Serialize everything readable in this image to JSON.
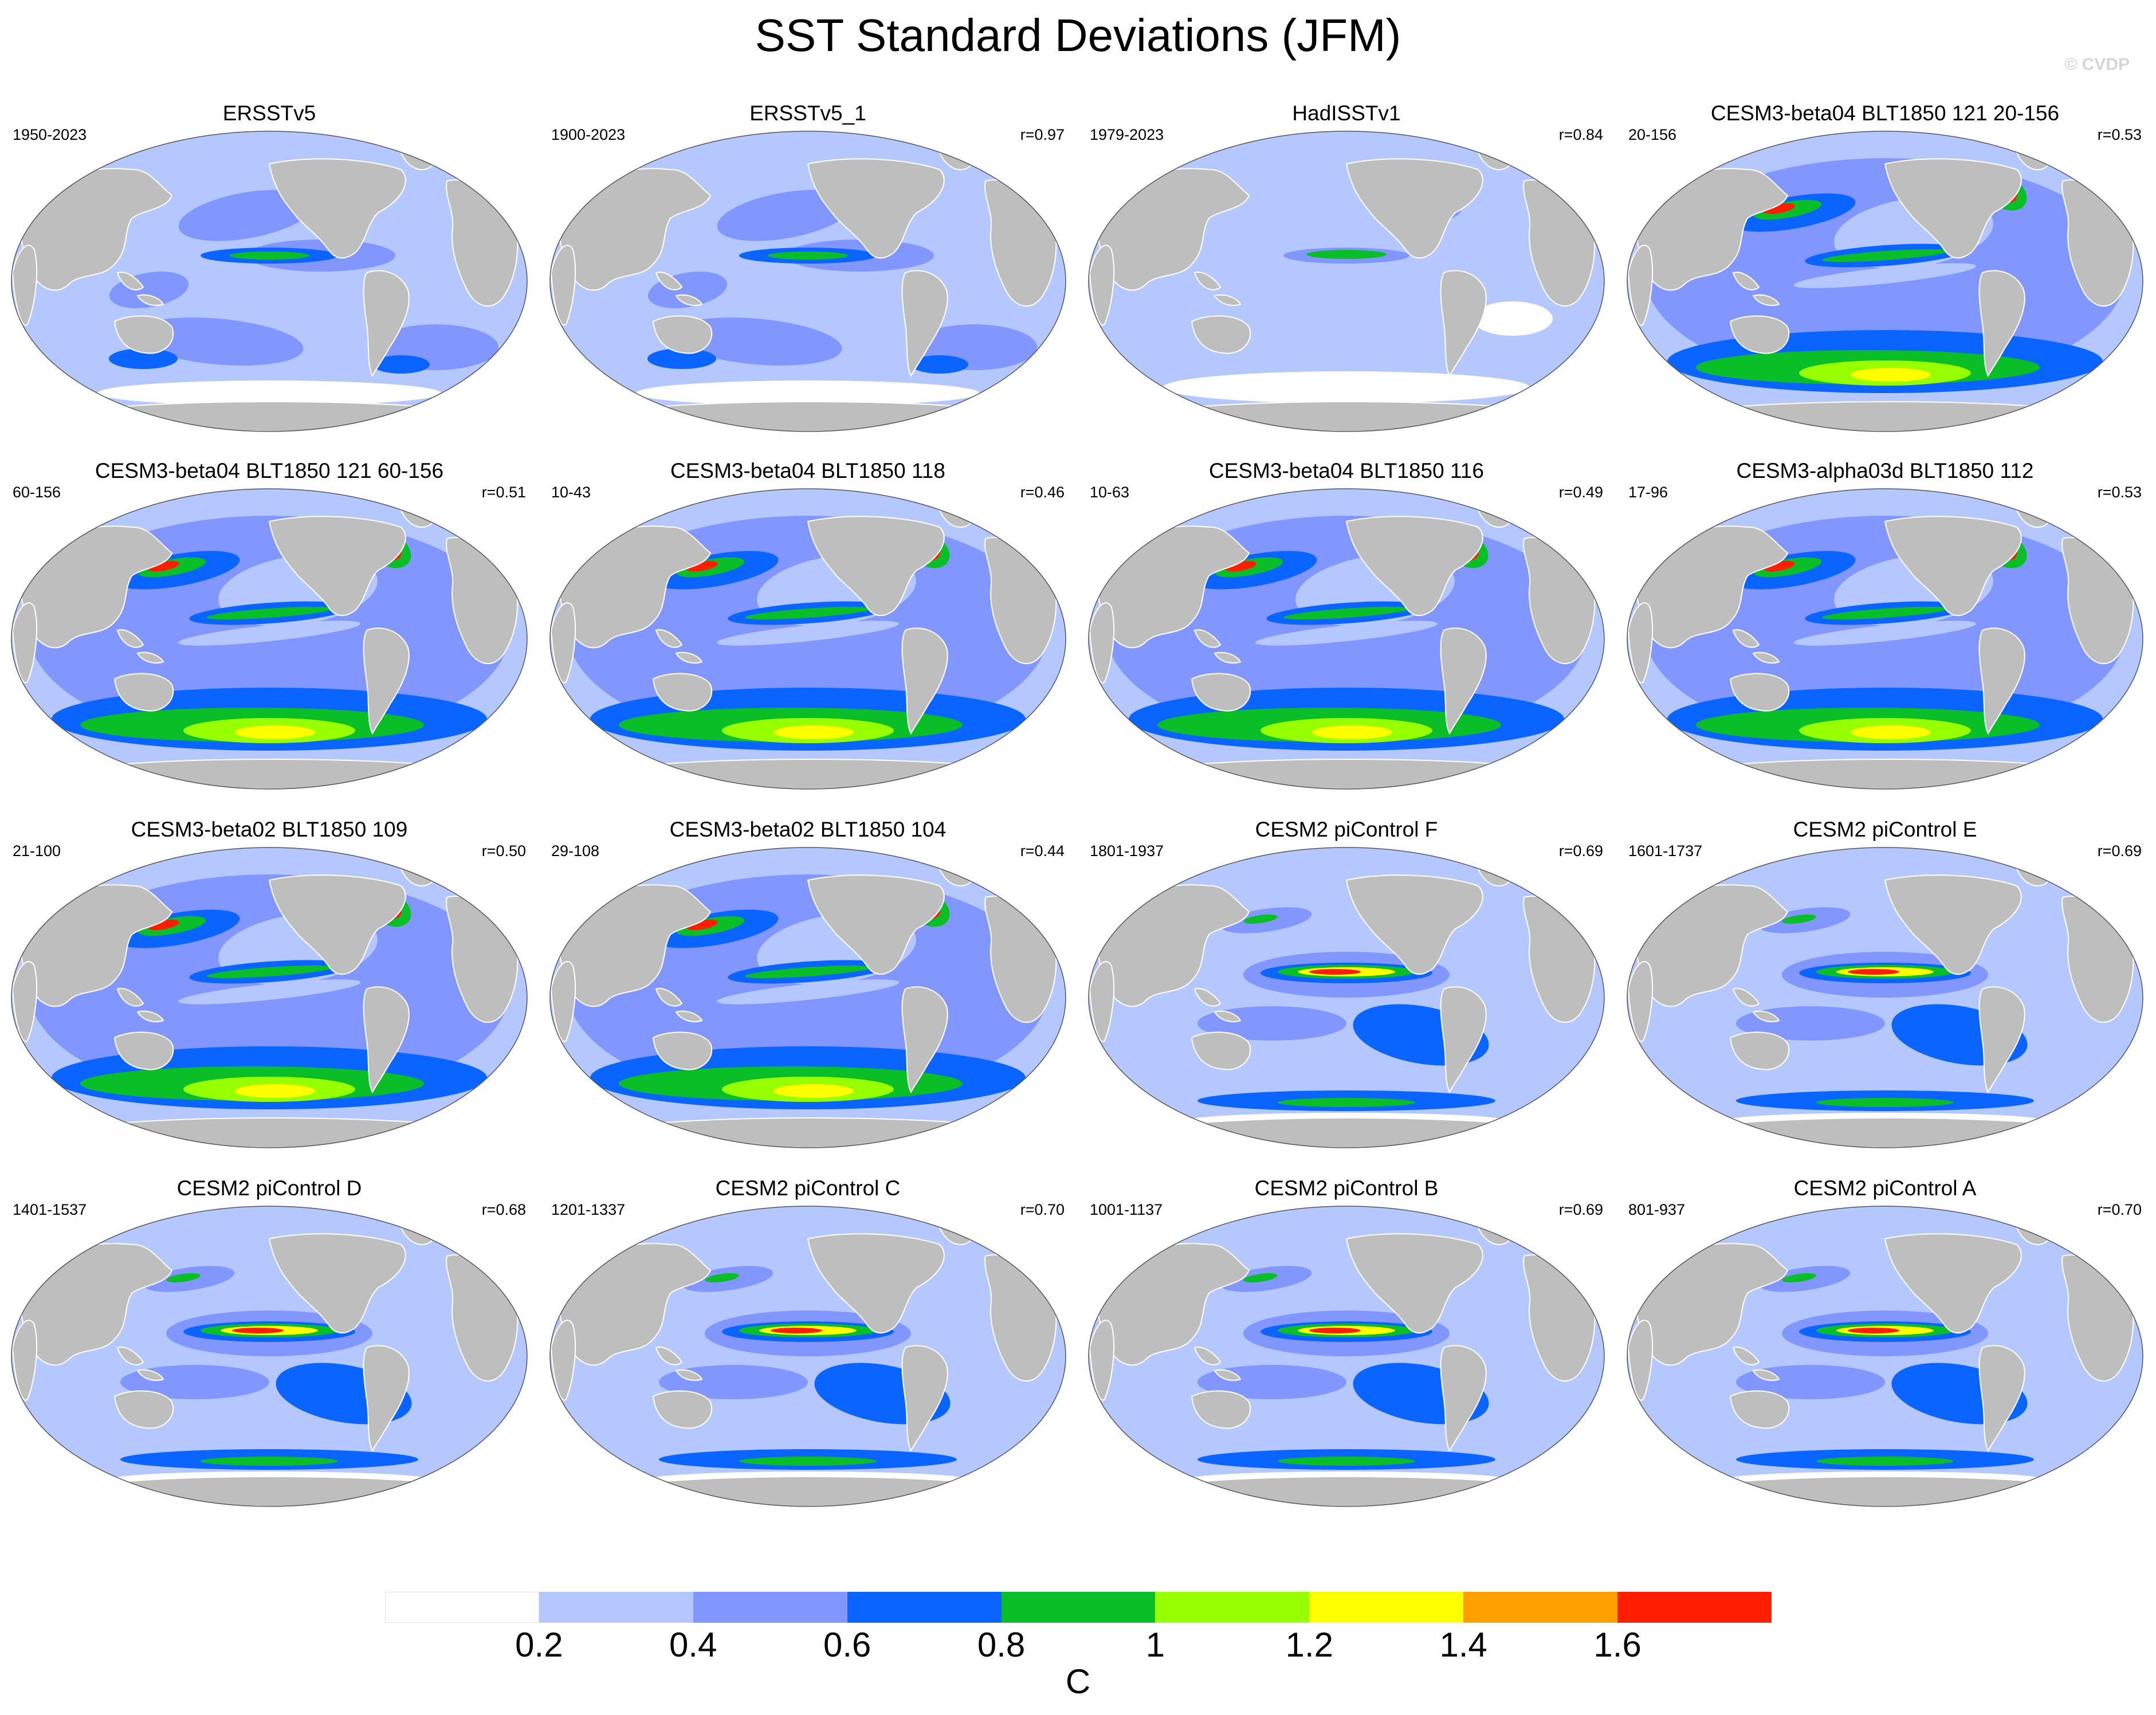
{
  "figure": {
    "title": "SST Standard Deviations (JFM)",
    "watermark": "© CVDP"
  },
  "panels": [
    {
      "title": "ERSSTv5",
      "years": "1950-2023",
      "r": "",
      "style": "obs"
    },
    {
      "title": "ERSSTv5_1",
      "years": "1900-2023",
      "r": "r=0.97",
      "style": "obs"
    },
    {
      "title": "HadISSTv1",
      "years": "1979-2023",
      "r": "r=0.84",
      "style": "had"
    },
    {
      "title": "CESM3-beta04 BLT1850 121 20-156",
      "years": "20-156",
      "r": "r=0.53",
      "style": "beta"
    },
    {
      "title": "CESM3-beta04 BLT1850 121 60-156",
      "years": "60-156",
      "r": "r=0.51",
      "style": "beta"
    },
    {
      "title": "CESM3-beta04 BLT1850 118",
      "years": "10-43",
      "r": "r=0.46",
      "style": "beta"
    },
    {
      "title": "CESM3-beta04 BLT1850 116",
      "years": "10-63",
      "r": "r=0.49",
      "style": "beta"
    },
    {
      "title": "CESM3-alpha03d BLT1850 112",
      "years": "17-96",
      "r": "r=0.53",
      "style": "beta"
    },
    {
      "title": "CESM3-beta02 BLT1850 109",
      "years": "21-100",
      "r": "r=0.50",
      "style": "beta"
    },
    {
      "title": "CESM3-beta02 BLT1850 104",
      "years": "29-108",
      "r": "r=0.44",
      "style": "beta"
    },
    {
      "title": "CESM2 piControl F",
      "years": "1801-1937",
      "r": "r=0.69",
      "style": "cesm2"
    },
    {
      "title": "CESM2 piControl E",
      "years": "1601-1737",
      "r": "r=0.69",
      "style": "cesm2"
    },
    {
      "title": "CESM2 piControl D",
      "years": "1401-1537",
      "r": "r=0.68",
      "style": "cesm2"
    },
    {
      "title": "CESM2 piControl C",
      "years": "1201-1337",
      "r": "r=0.70",
      "style": "cesm2"
    },
    {
      "title": "CESM2 piControl B",
      "years": "1001-1137",
      "r": "r=0.69",
      "style": "cesm2"
    },
    {
      "title": "CESM2 piControl A",
      "years": "801-937",
      "r": "r=0.70",
      "style": "cesm2"
    }
  ],
  "colorbar": {
    "unit": "C",
    "colors": [
      "#ffffff",
      "#b4c8ff",
      "#8296ff",
      "#0a64ff",
      "#0abe28",
      "#96ff00",
      "#ffff00",
      "#ffa000",
      "#ff1e00"
    ],
    "labels": [
      "0.2",
      "0.4",
      "0.6",
      "0.8",
      "1",
      "1.2",
      "1.4",
      "1.6"
    ]
  },
  "map_colors": {
    "land": "#bebebe",
    "background_ocean": "#b4c8ff"
  }
}
